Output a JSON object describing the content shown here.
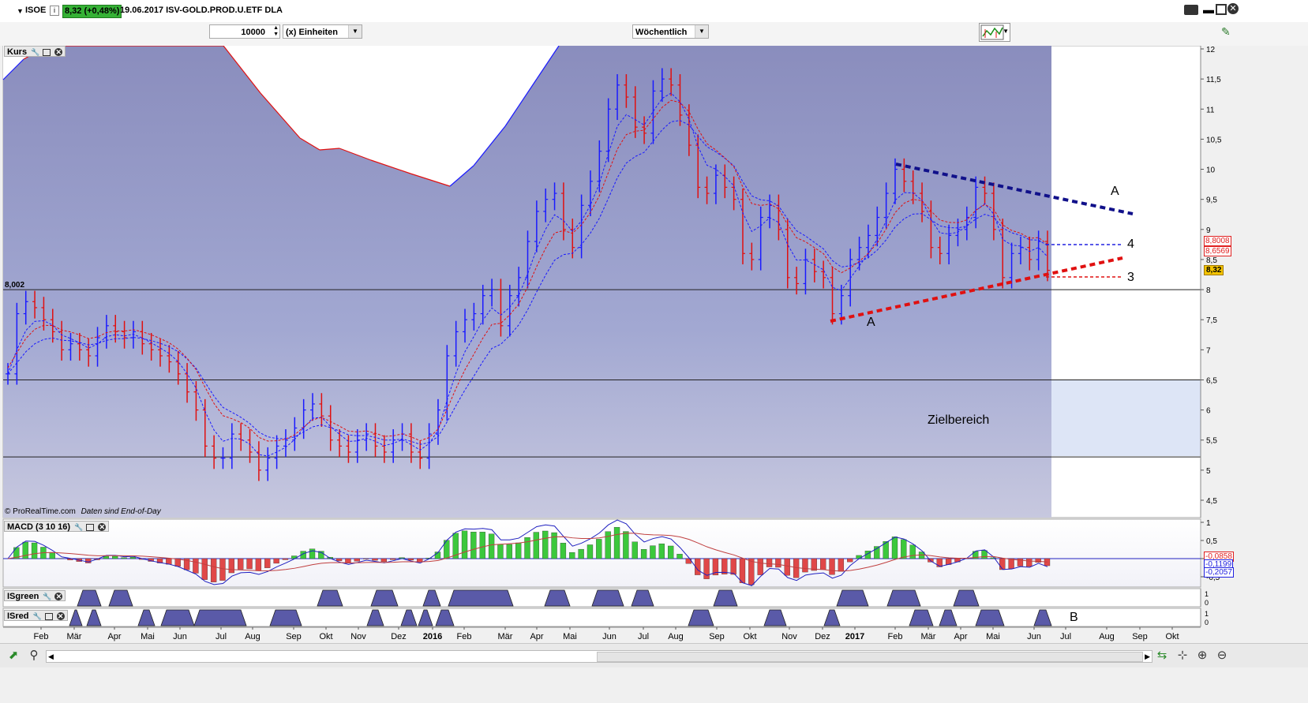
{
  "titlebar": {
    "symbol": "ISOE",
    "price_badge": "8,32 (+0,48%)",
    "date_name": "19.06.2017 ISV-GOLD.PROD.U.ETF DLA",
    "colors": {
      "badge_bg": "#35b135"
    }
  },
  "toolbar": {
    "quantity": "10000",
    "units_label": "(x) Einheiten",
    "period": "Wöchentlich"
  },
  "panels": {
    "price": {
      "title": "Kurs",
      "copyright": "© ProRealTime.com",
      "eod_note": "Daten sind End-of-Day",
      "zone_label": "Zielbereich",
      "line_label": "8,002",
      "y_ticks": [
        "12",
        "11,5",
        "11",
        "10,5",
        "10",
        "9,5",
        "9",
        "8,5",
        "8",
        "7,5",
        "7",
        "6,5",
        "6",
        "5,5",
        "5",
        "4,5"
      ],
      "badges": [
        {
          "text": "8,8008",
          "color": "#e02020"
        },
        {
          "text": "8,6569",
          "color": "#e02020"
        },
        {
          "text": "8,32",
          "color": "#f4c400"
        }
      ],
      "annotations": {
        "a_upper": "A",
        "a_lower": "A",
        "n4": "4",
        "n3": "3"
      }
    },
    "macd": {
      "title": "MACD (3 10 16)",
      "y_ticks": [
        "1",
        "0,5",
        "0",
        "-0,5"
      ],
      "badges": [
        {
          "text": "-0,0858",
          "color": "#e02020"
        },
        {
          "text": "-0,1199",
          "color": "#2020e0"
        },
        {
          "text": "-0,2057",
          "color": "#2020e0"
        }
      ]
    },
    "isgreen": {
      "title": "ISgreen",
      "y_ticks": [
        "1",
        "0"
      ]
    },
    "isred": {
      "title": "ISred",
      "y_ticks": [
        "1",
        "0"
      ],
      "annotation": "B"
    }
  },
  "x_axis": [
    "Feb",
    "Mär",
    "Apr",
    "Mai",
    "Jun",
    "Jul",
    "Aug",
    "Sep",
    "Okt",
    "Nov",
    "Dez",
    "2016",
    "Feb",
    "Mär",
    "Apr",
    "Mai",
    "Jun",
    "Jul",
    "Aug",
    "Sep",
    "Okt",
    "Nov",
    "Dez",
    "2017",
    "Feb",
    "Mär",
    "Apr",
    "Mai",
    "Jun",
    "Jul",
    "Aug",
    "Sep",
    "Okt"
  ],
  "colors": {
    "up_bar": "#1a1aff",
    "down_bar": "#e01010",
    "zone_bg": "#dde5f6",
    "chart_bg_top": "#8a8fc0",
    "chart_bg_bottom": "#c4c6df"
  }
}
